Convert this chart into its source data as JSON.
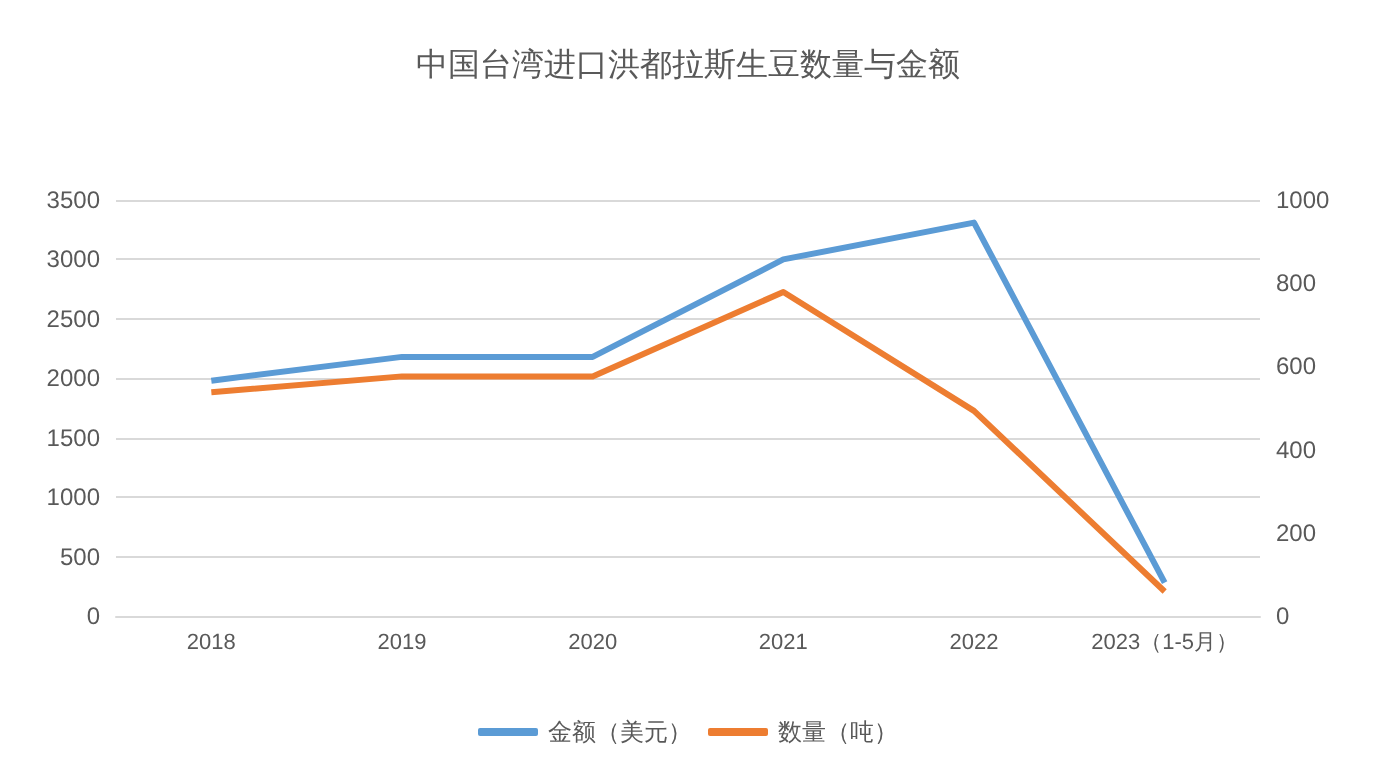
{
  "chart_data": {
    "type": "line",
    "title": "中国台湾进口洪都拉斯生豆数量与金额",
    "categories": [
      "2018",
      "2019",
      "2020",
      "2021",
      "2022",
      "2023（1-5月）"
    ],
    "series": [
      {
        "name": "金额（美元）",
        "color": "#5b9bd5",
        "values": [
          1980,
          2180,
          2180,
          3000,
          3310,
          280
        ]
      },
      {
        "name": "数量（吨）",
        "color": "#ed7d31",
        "values": [
          538,
          576,
          576,
          779,
          493,
          59
        ],
        "axis": "y2"
      }
    ],
    "ylim": [
      0,
      3500
    ],
    "yticks": [
      0,
      500,
      1000,
      1500,
      2000,
      2500,
      3000,
      3500
    ],
    "y2lim": [
      0,
      1000
    ],
    "y2ticks": [
      0,
      200,
      400,
      600,
      800,
      1000
    ],
    "grid": "y",
    "legend": "bottom",
    "marker": "none",
    "line_style": "solid"
  }
}
